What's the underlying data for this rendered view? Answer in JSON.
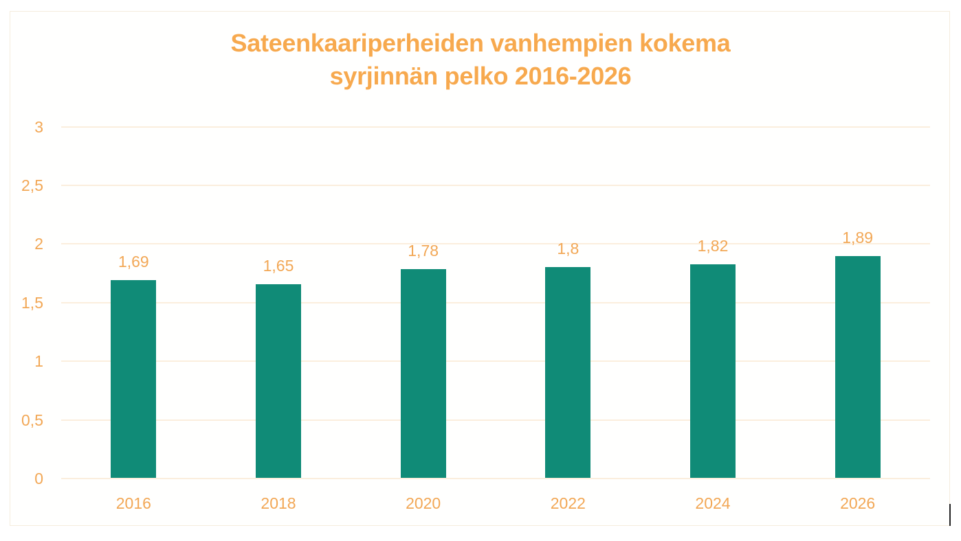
{
  "chart_data": {
    "type": "bar",
    "title": "Sateenkaariperheiden vanhempien kokema syrjinnän pelko 2016-2026",
    "title_lines": [
      "Sateenkaariperheiden vanhempien kokema",
      "syrjinnän pelko 2016-2026"
    ],
    "categories": [
      "2016",
      "2018",
      "2020",
      "2022",
      "2024",
      "2026"
    ],
    "values": [
      1.69,
      1.65,
      1.78,
      1.8,
      1.82,
      1.89
    ],
    "value_labels": [
      "1,69",
      "1,65",
      "1,78",
      "1,8",
      "1,82",
      "1,89"
    ],
    "xlabel": "",
    "ylabel": "",
    "ylim": [
      0,
      3
    ],
    "yticks": [
      "0",
      "0,5",
      "1",
      "1,5",
      "2",
      "2,5",
      "3"
    ],
    "grid": true,
    "legend": "none",
    "colors": {
      "bar": "#108b77",
      "text": "#f2a755",
      "title": "#f7a94e",
      "grid": "#fbeedd"
    }
  }
}
